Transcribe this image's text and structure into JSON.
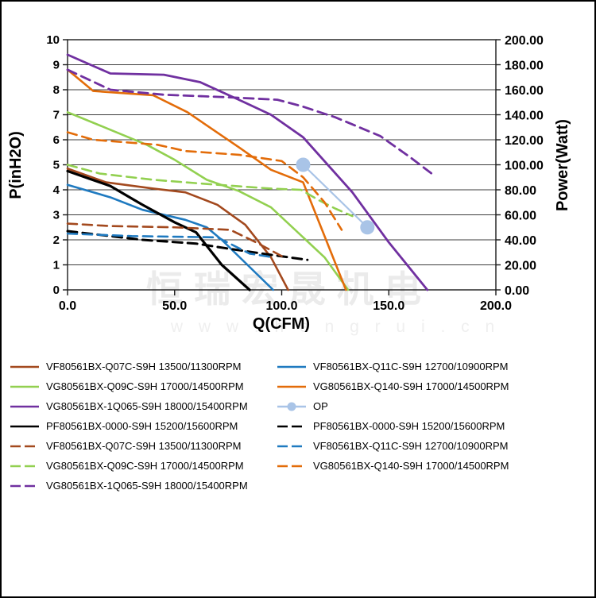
{
  "watermark": {
    "line1": "恒瑞宏晟机电",
    "line2": "w w w . h e n g r u i . c n"
  },
  "chart_data": {
    "type": "line",
    "title": "",
    "xlabel": "Q(CFM)",
    "ylabel_left": "P(inH2O)",
    "ylabel_right": "Power(Watt)",
    "xlim": [
      0,
      200
    ],
    "ylim_left": [
      0,
      10
    ],
    "ylim_right": [
      0,
      200
    ],
    "x_ticks": [
      {
        "v": 0,
        "t": "0.0"
      },
      {
        "v": 50,
        "t": "50.0"
      },
      {
        "v": 100,
        "t": "100.0"
      },
      {
        "v": 150,
        "t": "150.0"
      },
      {
        "v": 200,
        "t": "200.0"
      }
    ],
    "y_ticks_left": [
      {
        "v": 0,
        "t": "0"
      },
      {
        "v": 1,
        "t": "1"
      },
      {
        "v": 2,
        "t": "2"
      },
      {
        "v": 3,
        "t": "3"
      },
      {
        "v": 4,
        "t": "4"
      },
      {
        "v": 5,
        "t": "5"
      },
      {
        "v": 6,
        "t": "6"
      },
      {
        "v": 7,
        "t": "7"
      },
      {
        "v": 8,
        "t": "8"
      },
      {
        "v": 9,
        "t": "9"
      },
      {
        "v": 10,
        "t": "10"
      }
    ],
    "y_ticks_right": [
      {
        "v": 0,
        "t": "0.00"
      },
      {
        "v": 20,
        "t": "20.00"
      },
      {
        "v": 40,
        "t": "40.00"
      },
      {
        "v": 60,
        "t": "60.00"
      },
      {
        "v": 80,
        "t": "80.00"
      },
      {
        "v": 100,
        "t": "100.00"
      },
      {
        "v": 120,
        "t": "120.00"
      },
      {
        "v": 140,
        "t": "140.00"
      },
      {
        "v": 160,
        "t": "160.00"
      },
      {
        "v": 180,
        "t": "180.00"
      },
      {
        "v": 200,
        "t": "200.00"
      }
    ],
    "grid": "horizontal",
    "legend_position": "bottom",
    "series": [
      {
        "label": "VF80561BX-Q07C-S9H 13500/11300RPM",
        "color": "#A3491E",
        "dash": false,
        "axis": "left",
        "marker": false,
        "width": 2.6,
        "points": [
          [
            0,
            4.85
          ],
          [
            18,
            4.3
          ],
          [
            40,
            4.05
          ],
          [
            55,
            3.9
          ],
          [
            70,
            3.4
          ],
          [
            83,
            2.6
          ],
          [
            95,
            1.3
          ],
          [
            103,
            0
          ]
        ]
      },
      {
        "label": "VF80561BX-Q11C-S9H 12700/10900RPM",
        "color": "#1F7AC0",
        "dash": false,
        "axis": "left",
        "marker": false,
        "width": 2.6,
        "points": [
          [
            0,
            4.2
          ],
          [
            20,
            3.7
          ],
          [
            35,
            3.2
          ],
          [
            55,
            2.8
          ],
          [
            65,
            2.5
          ],
          [
            72,
            2.0
          ],
          [
            96,
            0
          ]
        ]
      },
      {
        "label": "VG80561BX-Q09C-S9H 17000/14500RPM",
        "color": "#92D050",
        "dash": false,
        "axis": "left",
        "marker": false,
        "width": 2.6,
        "points": [
          [
            0,
            7.1
          ],
          [
            20,
            6.4
          ],
          [
            37,
            5.8
          ],
          [
            50,
            5.2
          ],
          [
            65,
            4.4
          ],
          [
            80,
            3.95
          ],
          [
            95,
            3.3
          ],
          [
            110,
            2.1
          ],
          [
            120,
            1.3
          ],
          [
            131,
            0
          ]
        ]
      },
      {
        "label": "VG80561BX-Q140-S9H 17000/14500RPM",
        "color": "#E36C09",
        "dash": false,
        "axis": "left",
        "marker": false,
        "width": 2.6,
        "points": [
          [
            0,
            8.8
          ],
          [
            12,
            7.95
          ],
          [
            40,
            7.78
          ],
          [
            56,
            7.1
          ],
          [
            80,
            5.7
          ],
          [
            95,
            4.8
          ],
          [
            110,
            4.3
          ],
          [
            130,
            0
          ]
        ]
      },
      {
        "label": "VG80561BX-1Q065-S9H 18000/15400RPM",
        "color": "#7030A0",
        "dash": false,
        "axis": "left",
        "marker": false,
        "width": 2.8,
        "points": [
          [
            0,
            9.4
          ],
          [
            20,
            8.65
          ],
          [
            45,
            8.6
          ],
          [
            62,
            8.3
          ],
          [
            80,
            7.6
          ],
          [
            95,
            7.0
          ],
          [
            110,
            6.1
          ],
          [
            133,
            3.9
          ],
          [
            150,
            1.9
          ],
          [
            168,
            0
          ]
        ]
      },
      {
        "label": "OP",
        "color": "#A9C4E7",
        "dash": false,
        "axis": "left",
        "marker": true,
        "width": 2.2,
        "points": [
          [
            110,
            5.0
          ],
          [
            140,
            2.5
          ]
        ]
      },
      {
        "label": "PF80561BX-0000-S9H 15200/15600RPM",
        "color": "#000000",
        "dash": false,
        "axis": "left",
        "marker": false,
        "width": 3.2,
        "points": [
          [
            0,
            4.75
          ],
          [
            10,
            4.45
          ],
          [
            20,
            4.15
          ],
          [
            35,
            3.4
          ],
          [
            50,
            2.7
          ],
          [
            60,
            2.3
          ],
          [
            72,
            1.0
          ],
          [
            85,
            0
          ]
        ]
      },
      {
        "label": "PF80561BX-0000-S9H 15200/15600RPM",
        "color": "#000000",
        "dash": true,
        "axis": "right",
        "marker": false,
        "width": 3.0,
        "points": [
          [
            0,
            47
          ],
          [
            35,
            40
          ],
          [
            60,
            37
          ],
          [
            75,
            33
          ],
          [
            95,
            28
          ],
          [
            112,
            24
          ]
        ]
      },
      {
        "label": "VF80561BX-Q07C-S9H 13500/11300RPM",
        "color": "#A3491E",
        "dash": true,
        "axis": "right",
        "marker": false,
        "width": 2.6,
        "points": [
          [
            0,
            53
          ],
          [
            20,
            51
          ],
          [
            50,
            50
          ],
          [
            76,
            48
          ],
          [
            88,
            38
          ],
          [
            100,
            27
          ]
        ]
      },
      {
        "label": "VF80561BX-Q11C-S9H 12700/10900RPM",
        "color": "#1F7AC0",
        "dash": true,
        "axis": "right",
        "marker": false,
        "width": 2.6,
        "points": [
          [
            0,
            45
          ],
          [
            30,
            43
          ],
          [
            70,
            42
          ],
          [
            85,
            29
          ],
          [
            96,
            26
          ]
        ]
      },
      {
        "label": "VG80561BX-Q09C-S9H 17000/14500RPM",
        "color": "#92D050",
        "dash": true,
        "axis": "right",
        "marker": false,
        "width": 2.6,
        "points": [
          [
            0,
            100
          ],
          [
            15,
            93
          ],
          [
            40,
            88
          ],
          [
            70,
            84
          ],
          [
            95,
            81
          ],
          [
            109,
            80
          ],
          [
            117,
            72
          ],
          [
            125,
            65
          ],
          [
            133,
            59
          ]
        ]
      },
      {
        "label": "VG80561BX-Q140-S9H 17000/14500RPM",
        "color": "#E36C09",
        "dash": true,
        "axis": "right",
        "marker": false,
        "width": 2.6,
        "points": [
          [
            0,
            126
          ],
          [
            12,
            120
          ],
          [
            42,
            116
          ],
          [
            55,
            111
          ],
          [
            80,
            108
          ],
          [
            100,
            103
          ],
          [
            110,
            90
          ],
          [
            120,
            70
          ],
          [
            128,
            48
          ]
        ]
      },
      {
        "label": "VG80561BX-1Q065-S9H 18000/15400RPM",
        "color": "#7030A0",
        "dash": true,
        "axis": "right",
        "marker": false,
        "width": 2.8,
        "points": [
          [
            0,
            176
          ],
          [
            20,
            160
          ],
          [
            45,
            156
          ],
          [
            75,
            154
          ],
          [
            98,
            152
          ],
          [
            109,
            147
          ],
          [
            125,
            138
          ],
          [
            146,
            123
          ],
          [
            160,
            106
          ],
          [
            170,
            93
          ]
        ]
      }
    ]
  },
  "legend": {
    "columns": [
      [
        0,
        2,
        4,
        6,
        8,
        10,
        12
      ],
      [
        1,
        3,
        5,
        7,
        9,
        11
      ]
    ]
  }
}
